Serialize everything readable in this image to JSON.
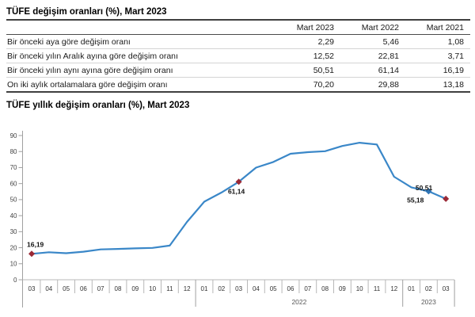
{
  "table": {
    "title": "TÜFE değişim oranları (%), Mart 2023",
    "columns": [
      "Mart 2023",
      "Mart 2022",
      "Mart 2021"
    ],
    "rows": [
      {
        "label": "Bir önceki aya göre değişim oranı",
        "values": [
          "2,29",
          "5,46",
          "1,08"
        ]
      },
      {
        "label": "Bir önceki yılın Aralık ayına göre değişim oranı",
        "values": [
          "12,52",
          "22,81",
          "3,71"
        ]
      },
      {
        "label": "Bir önceki yılın aynı ayına göre değişim oranı",
        "values": [
          "50,51",
          "61,14",
          "16,19"
        ]
      },
      {
        "label": "On iki aylık ortalamalara göre değişim oranı",
        "values": [
          "70,20",
          "29,88",
          "13,18"
        ]
      }
    ]
  },
  "chart_title": "TÜFE yıllık değişim oranları (%), Mart 2023",
  "chart_data": {
    "type": "line",
    "title": "TÜFE yıllık değişim oranları (%), Mart 2023",
    "x_months": [
      "03",
      "04",
      "05",
      "06",
      "07",
      "08",
      "09",
      "10",
      "11",
      "12",
      "01",
      "02",
      "03",
      "04",
      "05",
      "06",
      "07",
      "08",
      "09",
      "10",
      "11",
      "12",
      "01",
      "02",
      "03"
    ],
    "year_groups": [
      {
        "label": "",
        "count": 10
      },
      {
        "label": "2022",
        "count": 12
      },
      {
        "label": "2023",
        "count": 3
      }
    ],
    "values": [
      16.19,
      17.14,
      16.59,
      17.53,
      18.95,
      19.25,
      19.58,
      19.89,
      21.31,
      36.08,
      48.69,
      54.44,
      61.14,
      69.97,
      73.5,
      78.62,
      79.6,
      80.21,
      83.45,
      85.51,
      84.39,
      64.27,
      57.68,
      55.18,
      50.51
    ],
    "ylim": [
      0,
      90
    ],
    "ytick_step": 10,
    "grid": "off",
    "legend": "none",
    "line_color": "#3a87c8",
    "annotations": [
      {
        "index": 0,
        "label": "16,19",
        "marker_color": "#9a2936",
        "placement": "above-left"
      },
      {
        "index": 12,
        "label": "61,14",
        "marker_color": "#9a2936",
        "placement": "below"
      },
      {
        "index": 23,
        "label": "55,18",
        "marker_color": "#2e74b5",
        "placement": "below-left"
      },
      {
        "index": 24,
        "label": "50,51",
        "marker_color": "#9a2936",
        "placement": "upper-left"
      }
    ],
    "colors": {
      "axis": "#a0a0a0",
      "separator": "#b8b8b8",
      "tick_label": "#444444",
      "month_label": "#333333",
      "year_label": "#595959",
      "annotation_label": "#111111"
    }
  }
}
